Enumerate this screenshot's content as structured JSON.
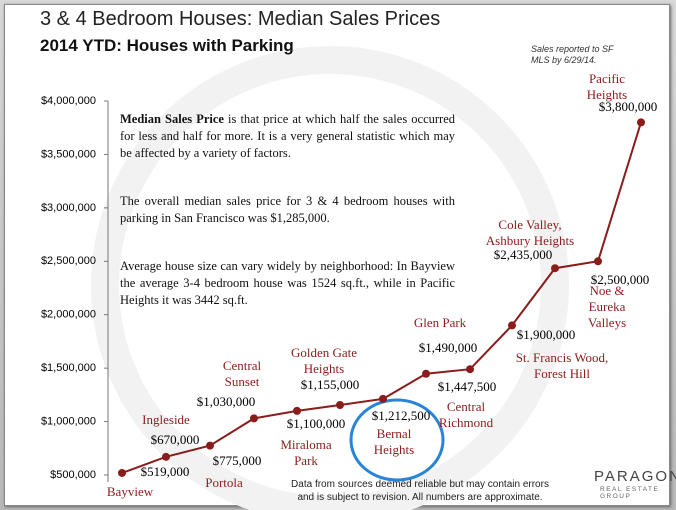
{
  "chart_data": {
    "type": "line",
    "title": "3 & 4 Bedroom Houses: Median Sales Prices",
    "subtitle": "2014 YTD: Houses with Parking",
    "source_note": "Sales reported to SF\nMLS by 6/29/14.",
    "annotation_lead": "Median Sales Price",
    "annotations": [
      " is that price at which half the sales occurred for less and half for more. It is a very general statistic which may be affected by a variety of factors.",
      "The overall median sales price for 3 & 4 bedroom houses with parking in San Francisco was $1,285,000.",
      "Average house size can vary widely by neighborhood: In Bayview the average 3-4 bedroom house was 1524 sq.ft., while in Pacific Heights it was 3442 sq.ft."
    ],
    "footnote": "Data from sources deemed reliable but may contain errors\nand is subject to revision.  All numbers are approximate.",
    "logo": {
      "name": "PARAGON",
      "tagline": "REAL ESTATE GROUP"
    },
    "categories": [
      "Bayview",
      "Ingleside",
      "Portola",
      "Central\nSunset",
      "Miraloma\nPark",
      "Golden Gate\nHeights",
      "Bernal\nHeights",
      "Central\nRichmond",
      "Glen Park",
      "St. Francis Wood,\nForest Hill",
      "Cole Valley,\nAshbury Heights",
      "Noe & Eureka\nValleys",
      "Pacific Heights"
    ],
    "values": [
      519000,
      670000,
      775000,
      1030000,
      1100000,
      1155000,
      1212500,
      1447500,
      1490000,
      1900000,
      2435000,
      2500000,
      3800000
    ],
    "value_labels": [
      "$519,000",
      "$670,000",
      "$775,000",
      "$1,030,000",
      "$1,100,000",
      "$1,155,000",
      "$1,212,500",
      "$1,447,500",
      "$1,490,000",
      "$1,900,000",
      "$2,435,000",
      "$2,500,000",
      "$3,800,000"
    ],
    "color": "#8b1c1c",
    "ylim": [
      500000,
      4000000
    ],
    "yticks": [
      {
        "value": 500000,
        "label": "$500,000"
      },
      {
        "value": 1000000,
        "label": "$1,000,000"
      },
      {
        "value": 1500000,
        "label": "$1,500,000"
      },
      {
        "value": 2000000,
        "label": "$2,000,000"
      },
      {
        "value": 2500000,
        "label": "$2,500,000"
      },
      {
        "value": 3000000,
        "label": "$3,000,000"
      },
      {
        "value": 3500000,
        "label": "$3,500,000"
      },
      {
        "value": 4000000,
        "label": "$4,000,000"
      }
    ]
  }
}
